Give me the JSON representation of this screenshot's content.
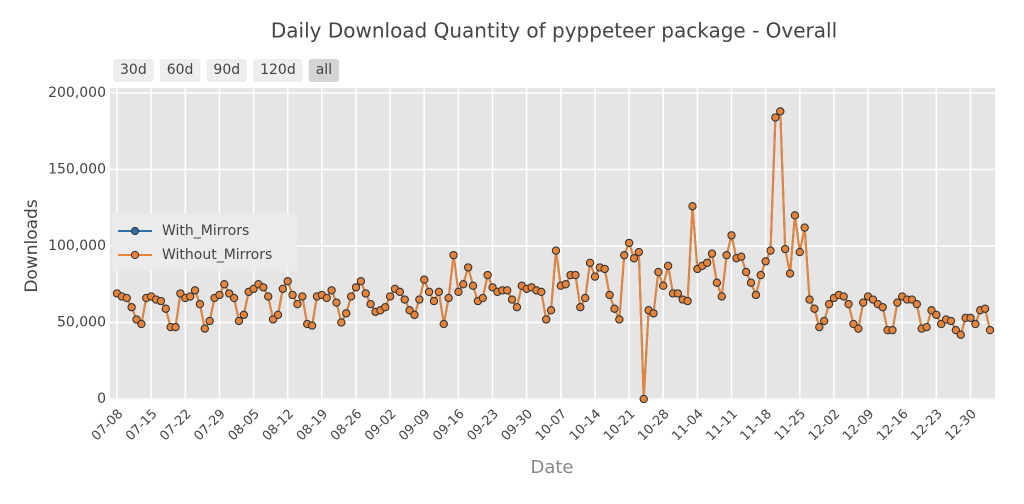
{
  "chart_data": {
    "type": "line",
    "title": "Daily Download Quantity of pyppeteer package - Overall",
    "buttons": [
      "30d",
      "60d",
      "90d",
      "120d",
      "all"
    ],
    "x_label": "Date",
    "y_label": "Downloads",
    "categories": [
      "07-08",
      null,
      null,
      null,
      null,
      null,
      null,
      "07-15",
      null,
      null,
      null,
      null,
      null,
      null,
      "07-22",
      null,
      null,
      null,
      null,
      null,
      null,
      "07-29",
      null,
      null,
      null,
      null,
      null,
      null,
      "08-05",
      null,
      null,
      null,
      null,
      null,
      null,
      "08-12",
      null,
      null,
      null,
      null,
      null,
      null,
      "08-19",
      null,
      null,
      null,
      null,
      null,
      null,
      "08-26",
      null,
      null,
      null,
      null,
      null,
      null,
      "09-02",
      null,
      null,
      null,
      null,
      null,
      null,
      "09-09",
      null,
      null,
      null,
      null,
      null,
      null,
      "09-16",
      null,
      null,
      null,
      null,
      null,
      null,
      "09-23",
      null,
      null,
      null,
      null,
      null,
      null,
      "09-30",
      null,
      null,
      null,
      null,
      null,
      null,
      "10-07",
      null,
      null,
      null,
      null,
      null,
      null,
      "10-14",
      null,
      null,
      null,
      null,
      null,
      null,
      "10-21",
      null,
      null,
      null,
      null,
      null,
      null,
      "10-28",
      null,
      null,
      null,
      null,
      null,
      null,
      "11-04",
      null,
      null,
      null,
      null,
      null,
      null,
      "11-11",
      null,
      null,
      null,
      null,
      null,
      null,
      "11-18",
      null,
      null,
      null,
      null,
      null,
      null,
      "11-25",
      null,
      null,
      null,
      null,
      null,
      null,
      "12-02",
      null,
      null,
      null,
      null,
      null,
      null,
      "12-09",
      null,
      null,
      null,
      null,
      null,
      null,
      "12-16",
      null,
      null,
      null,
      null,
      null,
      null,
      "12-23",
      null,
      null,
      null,
      null,
      null,
      null,
      "12-30",
      null,
      null,
      null,
      null
    ],
    "series": [
      {
        "name": "With_Mirrors",
        "color": "#2f6fa5",
        "values": [
          69000,
          67000,
          66000,
          60000,
          52000,
          49000,
          66000,
          67000,
          65000,
          64000,
          59000,
          47000,
          47000,
          69000,
          66000,
          67000,
          71000,
          62000,
          46000,
          51000,
          66000,
          68000,
          75000,
          69000,
          66000,
          51000,
          55000,
          70000,
          72000,
          75000,
          73000,
          67000,
          52000,
          55000,
          72000,
          77000,
          68000,
          62000,
          67000,
          49000,
          48000,
          67000,
          68000,
          66000,
          71000,
          63000,
          50000,
          56000,
          67000,
          73000,
          77000,
          69000,
          62000,
          57000,
          58000,
          60000,
          67000,
          72000,
          70000,
          65000,
          58000,
          55000,
          65000,
          78000,
          70000,
          64000,
          70000,
          49000,
          66000,
          94000,
          70000,
          75000,
          86000,
          74000,
          64000,
          66000,
          81000,
          73000,
          70000,
          71000,
          71000,
          65000,
          60000,
          74000,
          72000,
          73000,
          71000,
          70000,
          52000,
          58000,
          97000,
          74000,
          75000,
          81000,
          81000,
          60000,
          66000,
          89000,
          80000,
          86000,
          85000,
          68000,
          59000,
          52000,
          94000,
          102000,
          92000,
          96000,
          0,
          58000,
          56000,
          83000,
          74000,
          87000,
          69000,
          69000,
          65000,
          64000,
          126000,
          85000,
          87000,
          89000,
          95000,
          76000,
          67000,
          94000,
          107000,
          92000,
          93000,
          83000,
          76000,
          68000,
          81000,
          90000,
          97000,
          184000,
          188000,
          98000,
          82000,
          120000,
          96000,
          112000,
          65000,
          59000,
          47000,
          51000,
          62000,
          66000,
          68000,
          67000,
          62000,
          49000,
          46000,
          63000,
          67000,
          65000,
          62000,
          60000,
          45000,
          45000,
          63000,
          67000,
          65000,
          65000,
          62000,
          46000,
          47000,
          58000,
          55000,
          49000,
          52000,
          51000,
          45000,
          42000,
          53000,
          53000,
          49000,
          58000,
          59000,
          45000
        ]
      },
      {
        "name": "Without_Mirrors",
        "color": "#e8833a",
        "values": [
          69000,
          67000,
          66000,
          60000,
          52000,
          49000,
          66000,
          67000,
          65000,
          64000,
          59000,
          47000,
          47000,
          69000,
          66000,
          67000,
          71000,
          62000,
          46000,
          51000,
          66000,
          68000,
          75000,
          69000,
          66000,
          51000,
          55000,
          70000,
          72000,
          75000,
          73000,
          67000,
          52000,
          55000,
          72000,
          77000,
          68000,
          62000,
          67000,
          49000,
          48000,
          67000,
          68000,
          66000,
          71000,
          63000,
          50000,
          56000,
          67000,
          73000,
          77000,
          69000,
          62000,
          57000,
          58000,
          60000,
          67000,
          72000,
          70000,
          65000,
          58000,
          55000,
          65000,
          78000,
          70000,
          64000,
          70000,
          49000,
          66000,
          94000,
          70000,
          75000,
          86000,
          74000,
          64000,
          66000,
          81000,
          73000,
          70000,
          71000,
          71000,
          65000,
          60000,
          74000,
          72000,
          73000,
          71000,
          70000,
          52000,
          58000,
          97000,
          74000,
          75000,
          81000,
          81000,
          60000,
          66000,
          89000,
          80000,
          86000,
          85000,
          68000,
          59000,
          52000,
          94000,
          102000,
          92000,
          96000,
          0,
          58000,
          56000,
          83000,
          74000,
          87000,
          69000,
          69000,
          65000,
          64000,
          126000,
          85000,
          87000,
          89000,
          95000,
          76000,
          67000,
          94000,
          107000,
          92000,
          93000,
          83000,
          76000,
          68000,
          81000,
          90000,
          97000,
          184000,
          188000,
          98000,
          82000,
          120000,
          96000,
          112000,
          65000,
          59000,
          47000,
          51000,
          62000,
          66000,
          68000,
          67000,
          62000,
          49000,
          46000,
          63000,
          67000,
          65000,
          62000,
          60000,
          45000,
          45000,
          63000,
          67000,
          65000,
          65000,
          62000,
          46000,
          47000,
          58000,
          55000,
          49000,
          52000,
          51000,
          45000,
          42000,
          53000,
          53000,
          49000,
          58000,
          59000,
          45000
        ]
      }
    ],
    "ylim": [
      0,
      200000
    ],
    "yticks": [
      0,
      {
        "value": 50000,
        "label": "50,000"
      },
      {
        "value": 100000,
        "label": "100,000"
      },
      {
        "value": 150000,
        "label": "150,000"
      },
      {
        "value": 200000,
        "label": "200,000"
      }
    ],
    "grid": true,
    "legend": "left"
  }
}
